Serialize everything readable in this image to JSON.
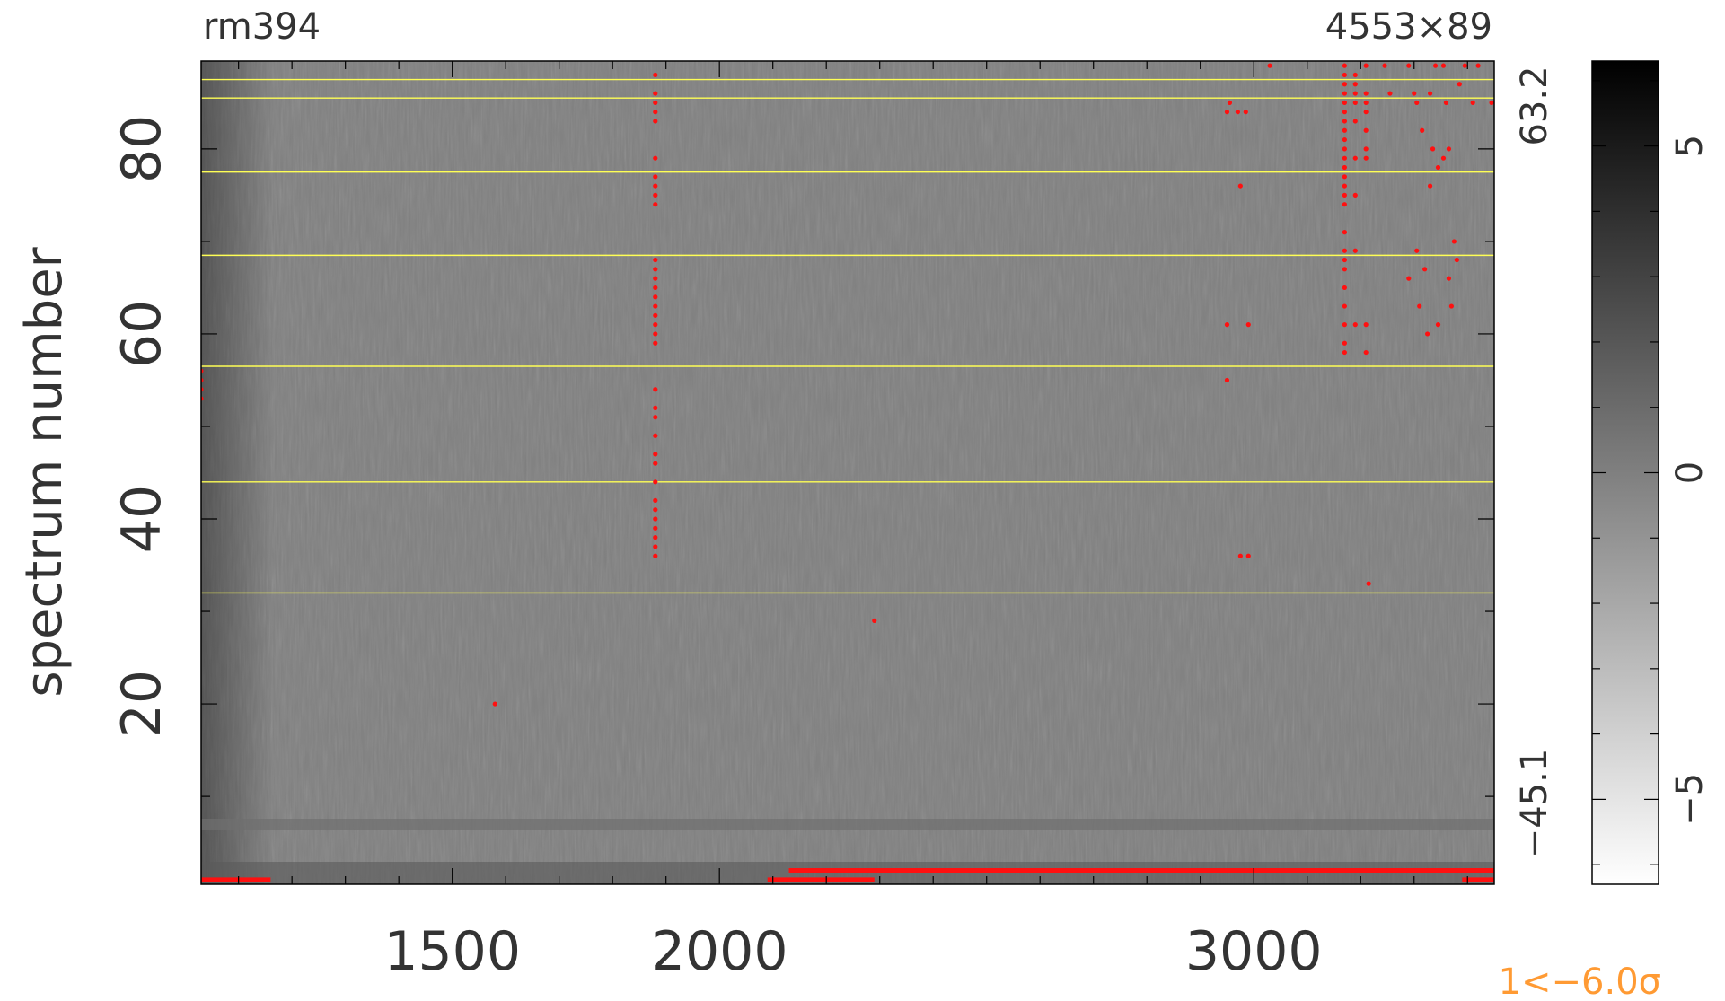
{
  "chart_data": {
    "type": "heatmap",
    "title_left": "rm394",
    "title_right": "4553×89",
    "xlabel": "",
    "ylabel": "spectrum number",
    "xlim": [
      1030,
      3450
    ],
    "ylim": [
      0.5,
      89.5
    ],
    "x_ticks": [
      1500,
      2000,
      3000
    ],
    "x_tick_labels": [
      "1500",
      "2000",
      "3000"
    ],
    "y_ticks": [
      20,
      40,
      60,
      80
    ],
    "y_tick_labels": [
      "20",
      "40",
      "60",
      "80"
    ],
    "data_range_labels": {
      "max": "63.2",
      "min": "−45.1"
    },
    "colorbar": {
      "range": [
        -6.3,
        6.3
      ],
      "ticks": [
        -5,
        0,
        5
      ],
      "tick_labels": [
        "−5",
        "0",
        "5"
      ],
      "colormap": "grayscale (high = black)"
    },
    "footnote": "1<−6.0σ",
    "fiber_group_boundaries": [
      32,
      44,
      56.5,
      68.5,
      77.5,
      85.5,
      87.5
    ],
    "boundary_color": "#ffff55",
    "marker_color": "#ff1010",
    "footnote_color": "#ff9a33",
    "masked_columns": [
      {
        "x": 1880,
        "y": [
          36,
          37,
          38,
          39,
          40,
          41,
          42,
          44,
          46,
          47,
          49,
          51,
          52,
          54,
          59,
          60,
          61,
          62,
          63,
          64,
          65,
          66,
          67,
          68,
          74,
          75,
          76,
          77,
          79,
          83,
          84,
          85,
          86,
          88
        ]
      },
      {
        "x": 3170,
        "y": [
          58,
          59,
          61,
          63,
          65,
          67,
          68,
          69,
          71,
          74,
          75,
          76,
          77,
          78,
          79,
          80,
          81,
          82,
          83,
          84,
          85,
          86,
          87,
          88,
          89
        ]
      },
      {
        "x": 3190,
        "y": [
          61,
          69,
          75,
          79,
          83,
          85,
          86,
          87,
          88
        ]
      },
      {
        "x": 3210,
        "y": [
          58,
          61,
          79,
          80,
          82,
          84,
          85,
          86,
          89
        ]
      }
    ],
    "masked_points": [
      {
        "x": 1030,
        "y": 53
      },
      {
        "x": 1030,
        "y": 54
      },
      {
        "x": 1030,
        "y": 55
      },
      {
        "x": 1030,
        "y": 56
      },
      {
        "x": 1580,
        "y": 20
      },
      {
        "x": 2290,
        "y": 29
      },
      {
        "x": 2950,
        "y": 55
      },
      {
        "x": 2950,
        "y": 61
      },
      {
        "x": 2990,
        "y": 61
      },
      {
        "x": 2950,
        "y": 84
      },
      {
        "x": 2970,
        "y": 84
      },
      {
        "x": 2985,
        "y": 84
      },
      {
        "x": 2955,
        "y": 85
      },
      {
        "x": 2975,
        "y": 76
      },
      {
        "x": 2975,
        "y": 36
      },
      {
        "x": 2990,
        "y": 36
      },
      {
        "x": 3030,
        "y": 89
      },
      {
        "x": 3215,
        "y": 33
      },
      {
        "x": 3245,
        "y": 89
      },
      {
        "x": 3255,
        "y": 86
      },
      {
        "x": 3290,
        "y": 89
      },
      {
        "x": 3305,
        "y": 85
      },
      {
        "x": 3315,
        "y": 82
      },
      {
        "x": 3335,
        "y": 80
      },
      {
        "x": 3290,
        "y": 66
      },
      {
        "x": 3305,
        "y": 69
      },
      {
        "x": 3310,
        "y": 63
      },
      {
        "x": 3320,
        "y": 67
      },
      {
        "x": 3325,
        "y": 60
      },
      {
        "x": 3330,
        "y": 76
      },
      {
        "x": 3345,
        "y": 78
      },
      {
        "x": 3355,
        "y": 79
      },
      {
        "x": 3360,
        "y": 85
      },
      {
        "x": 3365,
        "y": 66
      },
      {
        "x": 3370,
        "y": 63
      },
      {
        "x": 3375,
        "y": 70
      },
      {
        "x": 3380,
        "y": 68
      },
      {
        "x": 3385,
        "y": 87
      },
      {
        "x": 3395,
        "y": 89
      },
      {
        "x": 3410,
        "y": 85
      },
      {
        "x": 3420,
        "y": 89
      },
      {
        "x": 3445,
        "y": 85
      },
      {
        "x": 3300,
        "y": 86
      },
      {
        "x": 3330,
        "y": 86
      },
      {
        "x": 3340,
        "y": 89
      },
      {
        "x": 3355,
        "y": 89
      },
      {
        "x": 3365,
        "y": 80
      },
      {
        "x": 3345,
        "y": 61
      }
    ],
    "masked_segments": [
      {
        "x0": 1030,
        "x1": 1160,
        "y": 1
      },
      {
        "x0": 2090,
        "x1": 2290,
        "y": 1
      },
      {
        "x0": 2130,
        "x1": 3450,
        "y": 2
      },
      {
        "x0": 3390,
        "x1": 3450,
        "y": 1
      }
    ]
  }
}
